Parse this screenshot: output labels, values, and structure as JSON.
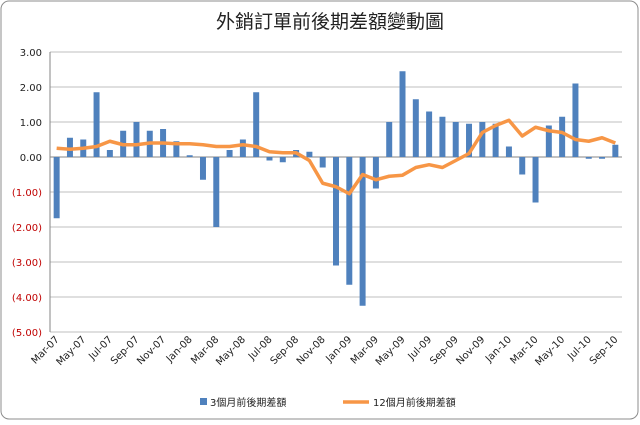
{
  "chart_data": {
    "type": "bar_line",
    "title": "外銷訂單前後期差額變動圖",
    "categories": [
      "Mar-07",
      null,
      "May-07",
      null,
      "Jul-07",
      null,
      "Sep-07",
      null,
      "Nov-07",
      null,
      "Jan-08",
      null,
      "Mar-08",
      null,
      "May-08",
      null,
      "Jul-08",
      null,
      "Sep-08",
      null,
      "Nov-08",
      null,
      "Jan-09",
      null,
      "Mar-09",
      null,
      "May-09",
      null,
      "Jul-09",
      null,
      "Sep-09",
      null,
      "Nov-09",
      null,
      "Jan-10",
      null,
      "Mar-10",
      null,
      "May-10",
      null,
      "Jul-10",
      null,
      "Sep-10"
    ],
    "series": [
      {
        "name": "3個月前後期差額",
        "kind": "bar",
        "color": "#4f81bd",
        "values": [
          -1.75,
          0.55,
          0.5,
          1.85,
          0.2,
          0.75,
          1.0,
          0.75,
          0.8,
          0.45,
          0.05,
          -0.65,
          -2.0,
          0.2,
          0.5,
          1.85,
          -0.1,
          -0.15,
          0.2,
          0.15,
          -0.3,
          -3.1,
          -3.65,
          -4.25,
          -0.9,
          1.0,
          2.45,
          1.65,
          1.3,
          1.15,
          1.0,
          0.95,
          1.0,
          0.95,
          0.3,
          -0.5,
          -1.3,
          0.9,
          1.15,
          2.1,
          -0.05,
          -0.05,
          0.35
        ]
      },
      {
        "name": "12個月前後期差額",
        "kind": "line",
        "color": "#f79646",
        "values": [
          0.25,
          0.22,
          0.25,
          0.3,
          0.45,
          0.35,
          0.35,
          0.4,
          0.4,
          0.38,
          0.38,
          0.35,
          0.3,
          0.3,
          0.35,
          0.3,
          0.15,
          0.12,
          0.12,
          -0.1,
          -0.75,
          -0.85,
          -1.05,
          -0.5,
          -0.65,
          -0.55,
          -0.52,
          -0.3,
          -0.22,
          -0.3,
          -0.1,
          0.1,
          0.7,
          0.9,
          1.05,
          0.6,
          0.85,
          0.75,
          0.7,
          0.5,
          0.45,
          0.55,
          0.4
        ]
      }
    ],
    "ylim": [
      -5,
      3
    ],
    "yticks": [
      {
        "value": 3,
        "label": "3.00"
      },
      {
        "value": 2,
        "label": "2.00"
      },
      {
        "value": 1,
        "label": "1.00"
      },
      {
        "value": 0,
        "label": "0.00"
      },
      {
        "value": -1,
        "label": "(1.00)"
      },
      {
        "value": -2,
        "label": "(2.00)"
      },
      {
        "value": -3,
        "label": "(3.00)"
      },
      {
        "value": -4,
        "label": "(4.00)"
      },
      {
        "value": -5,
        "label": "(5.00)"
      }
    ],
    "grid": true,
    "legend": "bottom"
  }
}
